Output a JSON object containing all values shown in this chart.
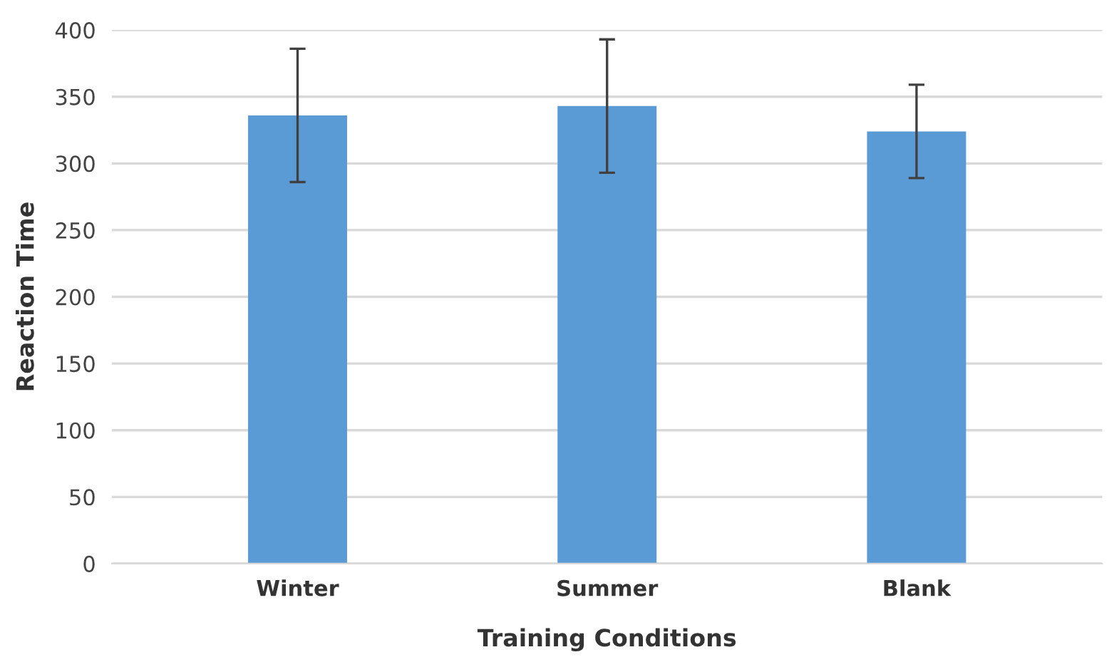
{
  "chart_data": {
    "type": "bar",
    "xlabel": "Training Conditions",
    "ylabel": "Reaction Time",
    "categories": [
      "Winter",
      "Summer",
      "Blank"
    ],
    "values": [
      336,
      343,
      324
    ],
    "errors": [
      50,
      50,
      35
    ],
    "color": "#5b9bd5",
    "ylim": [
      0,
      400
    ],
    "yticks": [
      0,
      50,
      100,
      150,
      200,
      250,
      300,
      350,
      400
    ],
    "grid": "y",
    "legend": false
  }
}
